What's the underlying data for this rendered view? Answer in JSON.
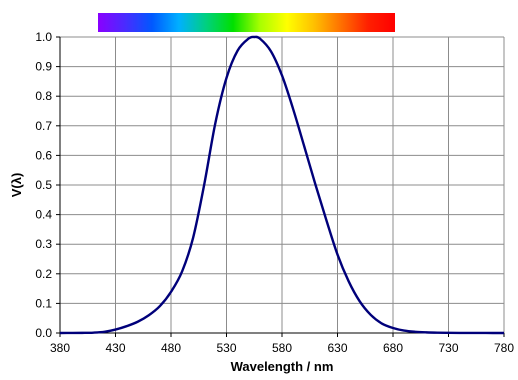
{
  "chart_data": {
    "type": "line",
    "title": "",
    "xlabel": "Wavelength / nm",
    "ylabel": "V(λ)",
    "xlim": [
      380,
      780
    ],
    "ylim": [
      0,
      1.0
    ],
    "x_ticks": [
      380,
      430,
      480,
      530,
      580,
      630,
      680,
      730,
      780
    ],
    "x_tick_labels": [
      "380",
      "430",
      "480",
      "530",
      "580",
      "630",
      "680",
      "730",
      "780"
    ],
    "y_ticks": [
      0,
      0.1,
      0.2,
      0.3,
      0.4,
      0.5,
      0.6,
      0.7,
      0.8,
      0.9,
      1.0
    ],
    "y_tick_labels": [
      "0.0",
      "0.1",
      "0.2",
      "0.3",
      "0.4",
      "0.5",
      "0.6",
      "0.7",
      "0.8",
      "0.9",
      "1.0"
    ],
    "grid": true,
    "legend": "none",
    "spectrum_bar": {
      "x_range": [
        400,
        680
      ],
      "colors": [
        "#8a00ff",
        "#4a2bff",
        "#0058ff",
        "#00b0ff",
        "#00d080",
        "#00e000",
        "#a8ff00",
        "#ffff00",
        "#ffc000",
        "#ff7000",
        "#ff2000",
        "#ff0000"
      ]
    },
    "series": [
      {
        "color": "#00007a",
        "x": [
          380,
          390,
          400,
          410,
          420,
          430,
          440,
          450,
          460,
          470,
          480,
          490,
          500,
          510,
          520,
          530,
          540,
          550,
          555,
          560,
          570,
          580,
          590,
          600,
          610,
          620,
          630,
          640,
          650,
          660,
          670,
          680,
          690,
          700,
          710,
          720,
          730,
          740,
          750,
          760,
          770,
          780
        ],
        "y": [
          0.0,
          0.0001,
          0.0004,
          0.0012,
          0.004,
          0.0116,
          0.023,
          0.038,
          0.06,
          0.091,
          0.139,
          0.208,
          0.323,
          0.503,
          0.71,
          0.862,
          0.954,
          0.995,
          1.0,
          0.995,
          0.952,
          0.87,
          0.757,
          0.631,
          0.503,
          0.381,
          0.265,
          0.175,
          0.107,
          0.061,
          0.032,
          0.017,
          0.0082,
          0.0041,
          0.0021,
          0.001,
          0.0005,
          0.0002,
          0.0001,
          0.0001,
          0.0,
          0.0
        ]
      }
    ]
  }
}
